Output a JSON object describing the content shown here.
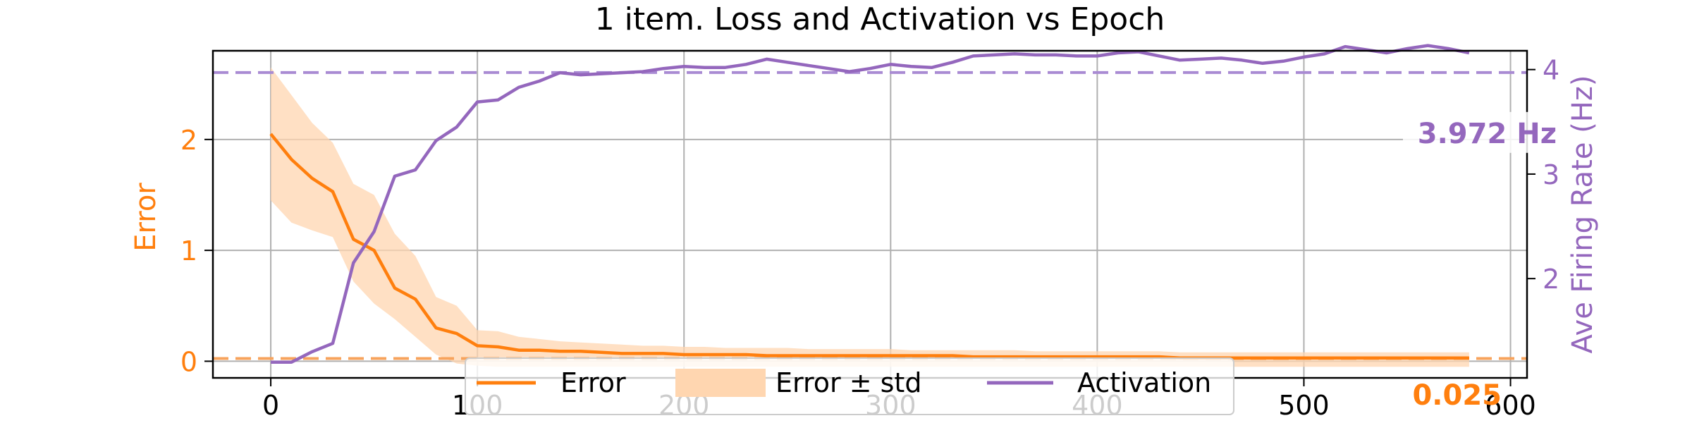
{
  "chart_data": {
    "type": "line",
    "title": "1 item. Loss and Activation vs Epoch",
    "xlabel": "",
    "ylabel_left": "Error",
    "ylabel_right": "Ave Firing Rate (Hz)",
    "xlim": [
      -28,
      608
    ],
    "ylim_left": [
      -0.15,
      2.8
    ],
    "ylim_right": [
      1.05,
      4.18
    ],
    "x_ticks": [
      0,
      100,
      200,
      300,
      400,
      500,
      600
    ],
    "y_ticks_left": [
      0,
      1,
      2
    ],
    "y_ticks_right": [
      2,
      3,
      4
    ],
    "grid": true,
    "legend_position": "bottom-center",
    "colors": {
      "error": "#ff7f0e",
      "error_band": "#ffd6b0",
      "activation": "#9467bd",
      "error_ref_line": "#f7a35c",
      "activation_ref_line": "#a98bd3"
    },
    "x": [
      0,
      10,
      20,
      30,
      40,
      50,
      60,
      70,
      80,
      90,
      100,
      110,
      120,
      130,
      140,
      150,
      160,
      170,
      180,
      190,
      200,
      210,
      220,
      230,
      240,
      250,
      260,
      270,
      280,
      290,
      300,
      310,
      320,
      330,
      340,
      350,
      360,
      370,
      380,
      390,
      400,
      410,
      420,
      430,
      440,
      450,
      460,
      470,
      480,
      490,
      500,
      510,
      520,
      530,
      540,
      550,
      560,
      570,
      580
    ],
    "series": [
      {
        "name": "Error",
        "axis": "left",
        "values": [
          2.05,
          1.82,
          1.65,
          1.53,
          1.1,
          1.0,
          0.66,
          0.56,
          0.3,
          0.25,
          0.14,
          0.13,
          0.1,
          0.1,
          0.09,
          0.09,
          0.08,
          0.07,
          0.07,
          0.07,
          0.06,
          0.06,
          0.06,
          0.06,
          0.05,
          0.05,
          0.05,
          0.05,
          0.05,
          0.05,
          0.05,
          0.05,
          0.05,
          0.05,
          0.04,
          0.04,
          0.04,
          0.04,
          0.04,
          0.04,
          0.04,
          0.04,
          0.04,
          0.04,
          0.03,
          0.03,
          0.03,
          0.03,
          0.03,
          0.03,
          0.03,
          0.03,
          0.03,
          0.03,
          0.03,
          0.03,
          0.03,
          0.03,
          0.03
        ],
        "std_lower": [
          1.45,
          1.25,
          1.18,
          1.12,
          0.72,
          0.52,
          0.38,
          0.22,
          0.06,
          -0.02,
          -0.04,
          -0.05,
          -0.05,
          -0.05,
          -0.05,
          -0.05,
          -0.05,
          -0.05,
          -0.05,
          -0.05,
          -0.05,
          -0.05,
          -0.05,
          -0.05,
          -0.05,
          -0.05,
          -0.05,
          -0.05,
          -0.05,
          -0.05,
          -0.05,
          -0.05,
          -0.05,
          -0.05,
          -0.05,
          -0.05,
          -0.05,
          -0.05,
          -0.05,
          -0.05,
          -0.05,
          -0.05,
          -0.05,
          -0.05,
          -0.05,
          -0.05,
          -0.05,
          -0.05,
          -0.05,
          -0.05,
          -0.05,
          -0.05,
          -0.05,
          -0.05,
          -0.05,
          -0.05,
          -0.05,
          -0.05,
          -0.05
        ],
        "std_upper": [
          2.65,
          2.4,
          2.15,
          1.97,
          1.6,
          1.5,
          1.15,
          0.95,
          0.58,
          0.5,
          0.28,
          0.27,
          0.22,
          0.2,
          0.18,
          0.17,
          0.16,
          0.15,
          0.14,
          0.14,
          0.13,
          0.13,
          0.12,
          0.12,
          0.12,
          0.12,
          0.11,
          0.11,
          0.11,
          0.11,
          0.11,
          0.1,
          0.1,
          0.1,
          0.1,
          0.1,
          0.1,
          0.09,
          0.09,
          0.09,
          0.09,
          0.09,
          0.09,
          0.09,
          0.08,
          0.08,
          0.08,
          0.08,
          0.08,
          0.08,
          0.08,
          0.08,
          0.08,
          0.08,
          0.08,
          0.08,
          0.08,
          0.08,
          0.08
        ]
      },
      {
        "name": "Activation",
        "axis": "right",
        "values": [
          1.2,
          1.2,
          1.3,
          1.38,
          2.15,
          2.45,
          2.98,
          3.04,
          3.32,
          3.45,
          3.69,
          3.71,
          3.83,
          3.89,
          3.97,
          3.95,
          3.96,
          3.97,
          3.98,
          4.01,
          4.03,
          4.02,
          4.02,
          4.05,
          4.1,
          4.07,
          4.04,
          4.01,
          3.98,
          4.01,
          4.05,
          4.03,
          4.02,
          4.07,
          4.13,
          4.14,
          4.15,
          4.14,
          4.14,
          4.13,
          4.13,
          4.16,
          4.17,
          4.13,
          4.09,
          4.1,
          4.11,
          4.09,
          4.06,
          4.08,
          4.12,
          4.15,
          4.22,
          4.19,
          4.16,
          4.2,
          4.23,
          4.2,
          4.16
        ]
      }
    ],
    "reference_lines": [
      {
        "axis": "left",
        "value": 0.025,
        "label": "0.025"
      },
      {
        "axis": "right",
        "value": 3.972,
        "label": "3.972 Hz"
      }
    ],
    "legend": [
      {
        "label": "Error",
        "kind": "line",
        "series": "error"
      },
      {
        "label": "Error ± std",
        "kind": "band",
        "series": "error_band"
      },
      {
        "label": "Activation",
        "kind": "line",
        "series": "activation"
      }
    ]
  }
}
